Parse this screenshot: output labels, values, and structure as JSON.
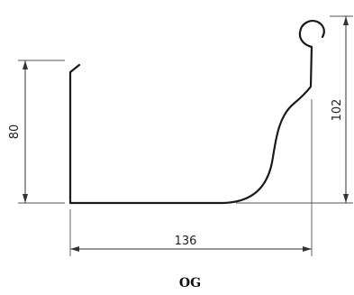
{
  "diagram": {
    "dimensions": {
      "height_left": "80",
      "height_right": "102",
      "width": "136"
    },
    "caption": "OG"
  }
}
